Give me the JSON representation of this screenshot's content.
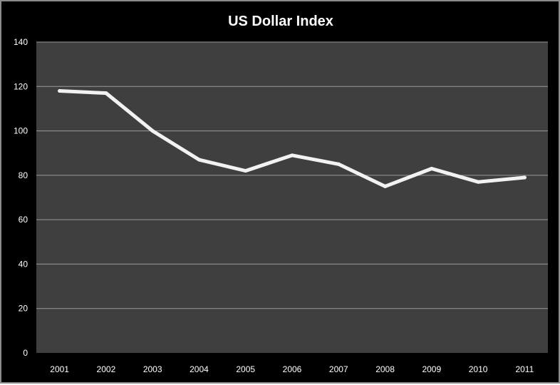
{
  "chart_data": {
    "type": "line",
    "title": "US Dollar Index",
    "xlabel": "",
    "ylabel": "",
    "categories": [
      "2001",
      "2002",
      "2003",
      "2004",
      "2005",
      "2006",
      "2007",
      "2008",
      "2009",
      "2010",
      "2011"
    ],
    "series": [
      {
        "values": [
          118,
          117,
          100,
          87,
          82,
          89,
          85,
          75,
          83,
          77,
          79
        ]
      }
    ],
    "ylim": [
      0,
      140
    ],
    "yticks": [
      0,
      20,
      40,
      60,
      80,
      100,
      120,
      140
    ],
    "grid": true,
    "legend": "none",
    "colors": {
      "background": "#000000",
      "plot_area": "#3f3f3f",
      "line": "#f2f2f2",
      "gridline": "#9a9a9a",
      "text": "#ffffff"
    }
  }
}
